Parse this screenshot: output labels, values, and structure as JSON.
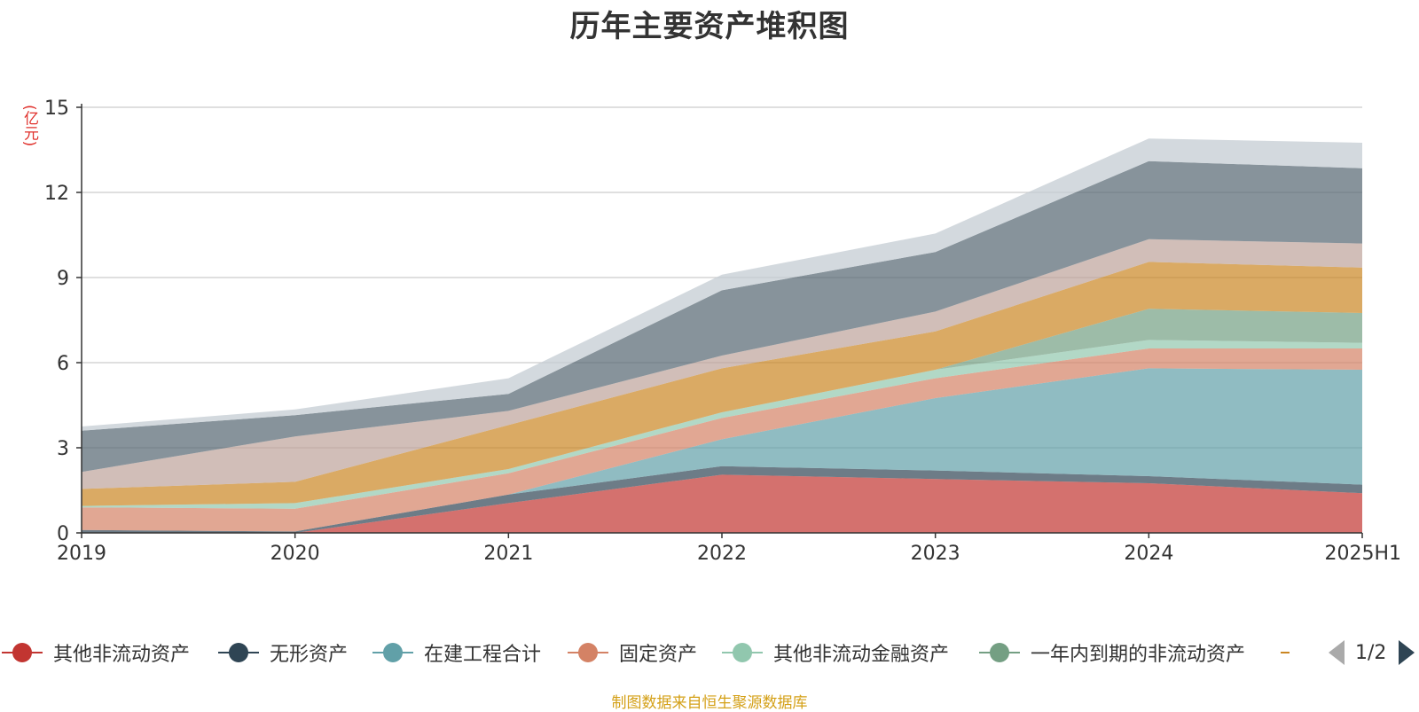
{
  "title": "历年主要资产堆积图",
  "unit_label": "(亿元)",
  "source_note": "制图数据来自恒生聚源数据库",
  "legend_page": "1/2",
  "colors": {
    "axis": "#333333",
    "grid": "#cccccc",
    "pager_active": "#2f4554",
    "pager_inactive": "#aaaaaa"
  },
  "legend": [
    {
      "name": "其他非流动资产",
      "color": "#c23531"
    },
    {
      "name": "无形资产",
      "color": "#2f4554"
    },
    {
      "name": "在建工程合计",
      "color": "#61a0a8"
    },
    {
      "name": "固定资产",
      "color": "#d48265"
    },
    {
      "name": "其他非流动金融资产",
      "color": "#91c7ae"
    },
    {
      "name": "一年内到期的非流动资产",
      "color": "#749f83"
    },
    {
      "name": "",
      "color": "#ca8622"
    }
  ],
  "chart_data": {
    "type": "area",
    "stacked": true,
    "title": "历年主要资产堆积图",
    "ylabel": "(亿元)",
    "x": [
      "2019",
      "2020",
      "2021",
      "2022",
      "2023",
      "2024",
      "2025H1"
    ],
    "ylim": [
      0,
      15
    ],
    "yticks": [
      0,
      3,
      6,
      9,
      12,
      15
    ],
    "grid": true,
    "legend_position": "bottom",
    "series": [
      {
        "name": "其他非流动资产",
        "color": "#c23531",
        "opacity": 0.7,
        "values": [
          0.0,
          0.0,
          1.05,
          2.05,
          1.9,
          1.75,
          1.4
        ]
      },
      {
        "name": "无形资产",
        "color": "#2f4554",
        "opacity": 0.7,
        "values": [
          0.1,
          0.05,
          0.3,
          0.3,
          0.3,
          0.25,
          0.3
        ]
      },
      {
        "opacity": 0.7,
        "values": [
          0.0,
          0.0,
          0.0,
          0.95,
          2.55,
          3.8,
          4.05
        ],
        "name": "在建工程合计",
        "color": "#61a0a8"
      },
      {
        "name": "固定资产",
        "color": "#d48265",
        "opacity": 0.7,
        "values": [
          0.8,
          0.8,
          0.75,
          0.75,
          0.7,
          0.7,
          0.75
        ]
      },
      {
        "name": "其他非流动金融资产",
        "color": "#91c7ae",
        "opacity": 0.7,
        "values": [
          0.05,
          0.2,
          0.15,
          0.2,
          0.3,
          0.3,
          0.2
        ]
      },
      {
        "name": "一年内到期的非流动资产",
        "color": "#749f83",
        "opacity": 0.7,
        "values": [
          0.0,
          0.0,
          0.0,
          0.0,
          0.0,
          1.1,
          1.05
        ]
      },
      {
        "color": "#ca8622",
        "opacity": 0.7,
        "values": [
          0.6,
          0.75,
          1.55,
          1.55,
          1.35,
          1.65,
          1.6
        ]
      },
      {
        "color": "#bda29a",
        "opacity": 0.7,
        "values": [
          0.6,
          1.6,
          0.5,
          0.45,
          0.7,
          0.8,
          0.85
        ]
      },
      {
        "color": "#546570",
        "opacity": 0.7,
        "values": [
          1.45,
          0.75,
          0.6,
          2.3,
          2.1,
          2.75,
          2.65
        ]
      },
      {
        "color": "#c4ccd3",
        "opacity": 0.75,
        "values": [
          0.15,
          0.2,
          0.55,
          0.55,
          0.65,
          0.8,
          0.9
        ]
      }
    ]
  }
}
